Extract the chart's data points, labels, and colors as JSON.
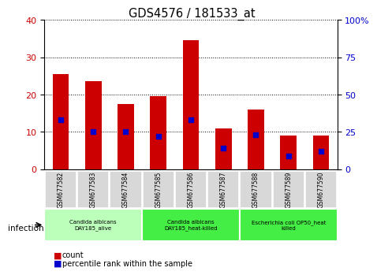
{
  "title": "GDS4576 / 181533_at",
  "samples": [
    "GSM677582",
    "GSM677583",
    "GSM677584",
    "GSM677585",
    "GSM677586",
    "GSM677587",
    "GSM677588",
    "GSM677589",
    "GSM677590"
  ],
  "counts": [
    25.5,
    23.5,
    17.5,
    19.5,
    34.5,
    11.0,
    16.0,
    9.0,
    9.0
  ],
  "percentile_ranks": [
    33,
    25,
    25,
    22,
    33,
    14,
    23,
    9,
    12
  ],
  "ylim_left": [
    0,
    40
  ],
  "ylim_right": [
    0,
    100
  ],
  "yticks_left": [
    0,
    10,
    20,
    30,
    40
  ],
  "yticks_right": [
    0,
    25,
    50,
    75,
    100
  ],
  "yticklabels_right": [
    "0",
    "25",
    "50",
    "75",
    "100%"
  ],
  "bar_color": "#cc0000",
  "dot_color": "#0000cc",
  "bar_width": 0.5,
  "groups": [
    {
      "label": "Candida albicans\nDAY185_alive",
      "start": 0,
      "end": 3,
      "color": "#bbffbb"
    },
    {
      "label": "Candida albicans\nDAY185_heat-killed",
      "start": 3,
      "end": 6,
      "color": "#44ee44"
    },
    {
      "label": "Escherichia coli OP50_heat\nkilled",
      "start": 6,
      "end": 9,
      "color": "#44ee44"
    }
  ],
  "infection_label": "infection",
  "legend_count_label": "count",
  "legend_pct_label": "percentile rank within the sample",
  "group_label_fontsize": 5.0,
  "sample_fontsize": 5.5
}
